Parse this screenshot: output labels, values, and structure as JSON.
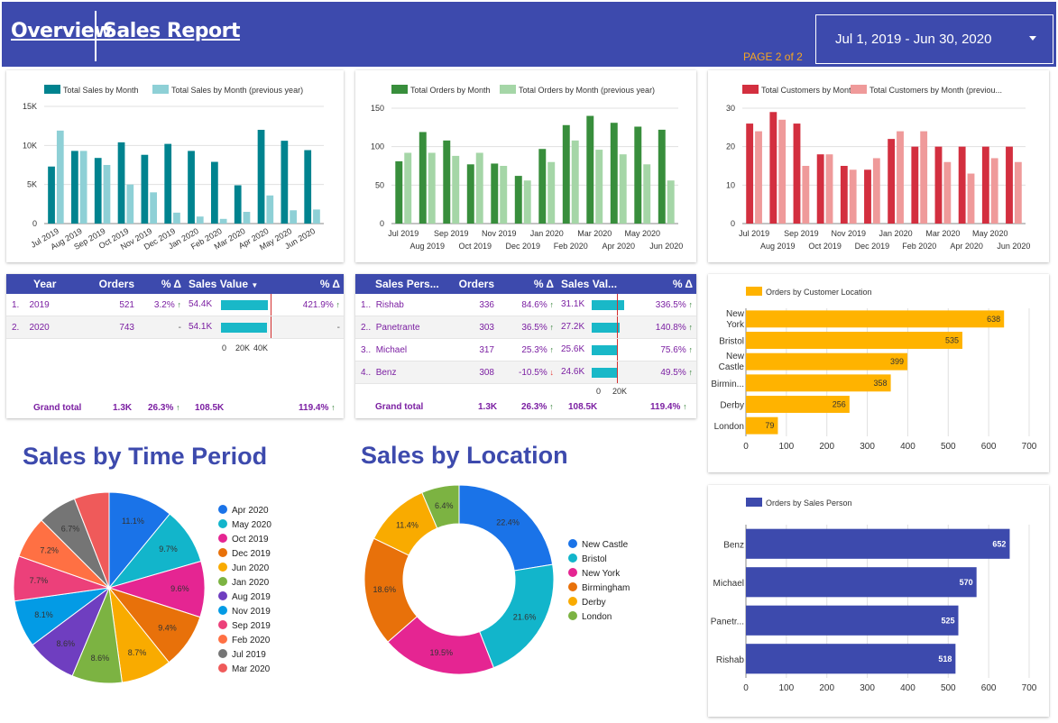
{
  "header": {
    "nav": [
      "Overview",
      "Sales Report"
    ],
    "page_indicator": "PAGE  2 of 2",
    "date_range": "Jul 1, 2019 - Jun 30, 2020"
  },
  "months": [
    "Jul 2019",
    "Aug 2019",
    "Sep 2019",
    "Oct 2019",
    "Nov 2019",
    "Dec 2019",
    "Jan 2020",
    "Feb 2020",
    "Mar 2020",
    "Apr 2020",
    "May 2020",
    "Jun 2020"
  ],
  "colors": {
    "header": "#3d4aad",
    "sales": "#00838f",
    "sales_prev": "#8ed0d6",
    "orders": "#388e3c",
    "orders_prev": "#a5d6a7",
    "customers": "#d32f3f",
    "customers_prev": "#ef9a9a",
    "location_bar": "#ffb300",
    "person_bar": "#3d4aad"
  },
  "chart_data": [
    {
      "type": "bar",
      "categories": [
        "Jul 2019",
        "Aug 2019",
        "Sep 2019",
        "Oct 2019",
        "Nov 2019",
        "Dec 2019",
        "Jan 2020",
        "Feb 2020",
        "Mar 2020",
        "Apr 2020",
        "May 2020",
        "Jun 2020"
      ],
      "series": [
        {
          "name": "Total Sales by Month",
          "values": [
            7300,
            9300,
            8400,
            10400,
            8800,
            10200,
            9300,
            7900,
            4900,
            12000,
            10600,
            9400
          ]
        },
        {
          "name": "Total Sales by Month (previous year)",
          "values": [
            11900,
            9300,
            7500,
            5000,
            4000,
            1400,
            900,
            600,
            1500,
            3600,
            1700,
            1800
          ]
        }
      ],
      "y_ticks": [
        "0",
        "5K",
        "10K",
        "15K"
      ],
      "ylim": [
        0,
        15000
      ]
    },
    {
      "type": "bar",
      "categories": [
        "Jul 2019",
        "Aug 2019",
        "Sep 2019",
        "Oct 2019",
        "Nov 2019",
        "Dec 2019",
        "Jan 2020",
        "Feb 2020",
        "Mar 2020",
        "Apr 2020",
        "May 2020",
        "Jun 2020"
      ],
      "series": [
        {
          "name": "Total Orders by Month",
          "values": [
            81,
            119,
            108,
            77,
            78,
            62,
            97,
            128,
            140,
            131,
            126,
            122
          ]
        },
        {
          "name": "Total Orders by Month (previous year)",
          "values": [
            92,
            92,
            88,
            92,
            75,
            56,
            80,
            108,
            96,
            90,
            77,
            56
          ]
        }
      ],
      "y_ticks": [
        "0",
        "50",
        "100",
        "150"
      ],
      "ylim": [
        0,
        150
      ]
    },
    {
      "type": "bar",
      "categories": [
        "Jul 2019",
        "Aug 2019",
        "Sep 2019",
        "Oct 2019",
        "Nov 2019",
        "Dec 2019",
        "Jan 2020",
        "Feb 2020",
        "Mar 2020",
        "Apr 2020",
        "May 2020",
        "Jun 2020"
      ],
      "series": [
        {
          "name": "Total Customers by Month",
          "values": [
            26,
            29,
            26,
            18,
            15,
            14,
            22,
            20,
            20,
            20,
            20,
            20
          ]
        },
        {
          "name": "Total Customers by Month (previous year)",
          "values": [
            24,
            27,
            15,
            18,
            14,
            17,
            24,
            24,
            16,
            13,
            17,
            16
          ]
        }
      ],
      "legend_display": [
        "Total Customers by Month",
        "Total Customers by Month (previou..."
      ],
      "y_ticks": [
        "0",
        "10",
        "20",
        "30"
      ],
      "ylim": [
        0,
        30
      ]
    },
    {
      "type": "bar",
      "orientation": "horizontal",
      "title": "Orders by Customer Location",
      "categories": [
        "New York",
        "Bristol",
        "New Castle",
        "Birmin...",
        "Derby",
        "London"
      ],
      "values": [
        638,
        535,
        399,
        358,
        256,
        79
      ],
      "x_ticks": [
        "0",
        "100",
        "200",
        "300",
        "400",
        "500",
        "600",
        "700"
      ],
      "xlim": [
        0,
        700
      ]
    },
    {
      "type": "bar",
      "orientation": "horizontal",
      "title": "Orders by Sales Person",
      "categories": [
        "Benz",
        "Michael",
        "Panetr...",
        "Rishab"
      ],
      "values": [
        652,
        570,
        525,
        518
      ],
      "x_ticks": [
        "0",
        "100",
        "200",
        "300",
        "400",
        "500",
        "600",
        "700"
      ],
      "xlim": [
        0,
        700
      ]
    },
    {
      "type": "pie",
      "title": "Sales by Time Period",
      "categories": [
        "Apr 2020",
        "May 2020",
        "Oct 2019",
        "Dec 2019",
        "Jun 2020",
        "Jan 2020",
        "Aug 2019",
        "Nov 2019",
        "Sep 2019",
        "Feb 2020",
        "Jul 2019",
        "Mar 2020"
      ],
      "values": [
        11.1,
        9.7,
        9.6,
        9.4,
        8.7,
        8.6,
        8.6,
        8.1,
        7.7,
        7.2,
        6.7,
        6.0
      ],
      "labels": [
        "11.1%",
        "9.7%",
        "9.6%",
        "9.4%",
        "8.7%",
        "8.6%",
        "8.6%",
        "8.1%",
        "7.7%",
        "7.2%",
        "6.7%",
        ""
      ],
      "colors": [
        "#1a73e8",
        "#12b5cb",
        "#e52592",
        "#e8710a",
        "#f9ab00",
        "#7cb342",
        "#6f3ec0",
        "#039be5",
        "#ec407a",
        "#ff7043",
        "#757575",
        "#ef5a5a"
      ]
    },
    {
      "type": "pie",
      "variant": "donut",
      "title": "Sales by Location",
      "categories": [
        "New Castle",
        "Bristol",
        "New York",
        "Birmingham",
        "Derby",
        "London"
      ],
      "values": [
        22.4,
        21.6,
        19.5,
        18.6,
        11.4,
        6.4
      ],
      "labels": [
        "22.4%",
        "21.6%",
        "19.5%",
        "18.6%",
        "11.4%",
        "6.4%"
      ],
      "colors": [
        "#1a73e8",
        "#12b5cb",
        "#e52592",
        "#e8710a",
        "#f9ab00",
        "#7cb342"
      ]
    }
  ],
  "year_table": {
    "headers": [
      "Year",
      "Orders",
      "% Δ",
      "Sales Value",
      "% Δ"
    ],
    "rows": [
      {
        "idx": "1.",
        "year": "2019",
        "orders": "521",
        "pct": "3.2%",
        "sales": "54.4K",
        "sales_value": 54400,
        "pct2": "421.9%"
      },
      {
        "idx": "2.",
        "year": "2020",
        "orders": "743",
        "pct": "-",
        "sales": "54.1K",
        "sales_value": 54100,
        "pct2": "-"
      }
    ],
    "axis": [
      "0",
      "20K",
      "40K"
    ],
    "grand_total": {
      "label": "Grand total",
      "orders": "1.3K",
      "pct": "26.3%",
      "sales": "108.5K",
      "pct2": "119.4%"
    }
  },
  "person_table": {
    "headers": [
      "Sales Pers...",
      "Orders",
      "% Δ",
      "Sales Val...",
      "% Δ"
    ],
    "rows": [
      {
        "idx": "1..",
        "name": "Rishab",
        "orders": "336",
        "pct": "84.6%",
        "dir": "up",
        "sales": "31.1K",
        "sales_value": 31100,
        "pct2": "336.5%"
      },
      {
        "idx": "2..",
        "name": "Panetrante",
        "orders": "303",
        "pct": "36.5%",
        "dir": "up",
        "sales": "27.2K",
        "sales_value": 27200,
        "pct2": "140.8%"
      },
      {
        "idx": "3..",
        "name": "Michael",
        "orders": "317",
        "pct": "25.3%",
        "dir": "up",
        "sales": "25.6K",
        "sales_value": 25600,
        "pct2": "75.6%"
      },
      {
        "idx": "4..",
        "name": "Benz",
        "orders": "308",
        "pct": "-10.5%",
        "dir": "down",
        "sales": "24.6K",
        "sales_value": 24600,
        "pct2": "49.5%"
      }
    ],
    "axis": [
      "0",
      "20K"
    ],
    "grand_total": {
      "label": "Grand total",
      "orders": "1.3K",
      "pct": "26.3%",
      "sales": "108.5K",
      "pct2": "119.4%"
    }
  },
  "titles": {
    "time_period": "Sales by Time Period",
    "location": "Sales by Location"
  }
}
